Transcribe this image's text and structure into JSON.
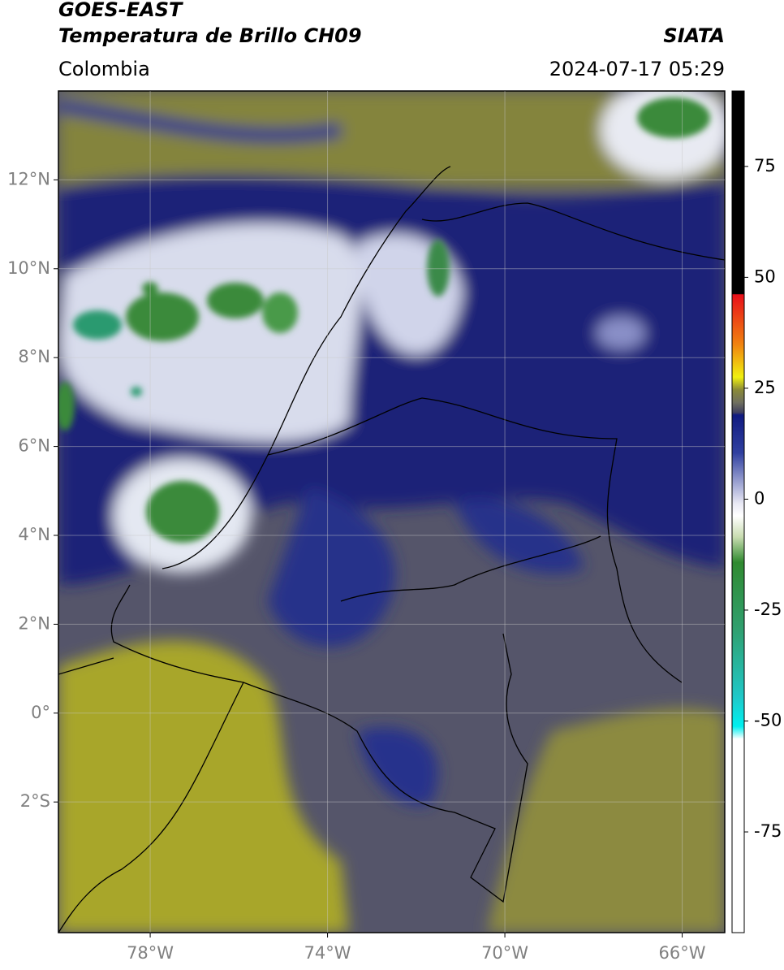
{
  "header": {
    "title": "GOES-EAST",
    "subtitle": "Temperatura de Brillo CH09",
    "source": "SIATA",
    "region": "Colombia",
    "datetime": "2024-07-17 05:29"
  },
  "map": {
    "xlim": [
      -80.07,
      -65.04
    ],
    "ylim": [
      -4.94,
      14.0
    ],
    "xticks": [
      {
        "value": -78,
        "label": "78°W"
      },
      {
        "value": -74,
        "label": "74°W"
      },
      {
        "value": -70,
        "label": "70°W"
      },
      {
        "value": -66,
        "label": "66°W"
      }
    ],
    "yticks": [
      {
        "value": 12,
        "label": "12°N"
      },
      {
        "value": 10,
        "label": "10°N"
      },
      {
        "value": 8,
        "label": "8°N"
      },
      {
        "value": 6,
        "label": "6°N"
      },
      {
        "value": 4,
        "label": "4°N"
      },
      {
        "value": 2,
        "label": "2°N"
      },
      {
        "value": 0,
        "label": "0°"
      },
      {
        "value": -2,
        "label": "2°S"
      }
    ],
    "grid": true
  },
  "colorbar": {
    "lim": [
      -97.7,
      92
    ],
    "ticks": [
      75,
      50,
      25,
      0,
      -25,
      -50,
      -75
    ]
  }
}
